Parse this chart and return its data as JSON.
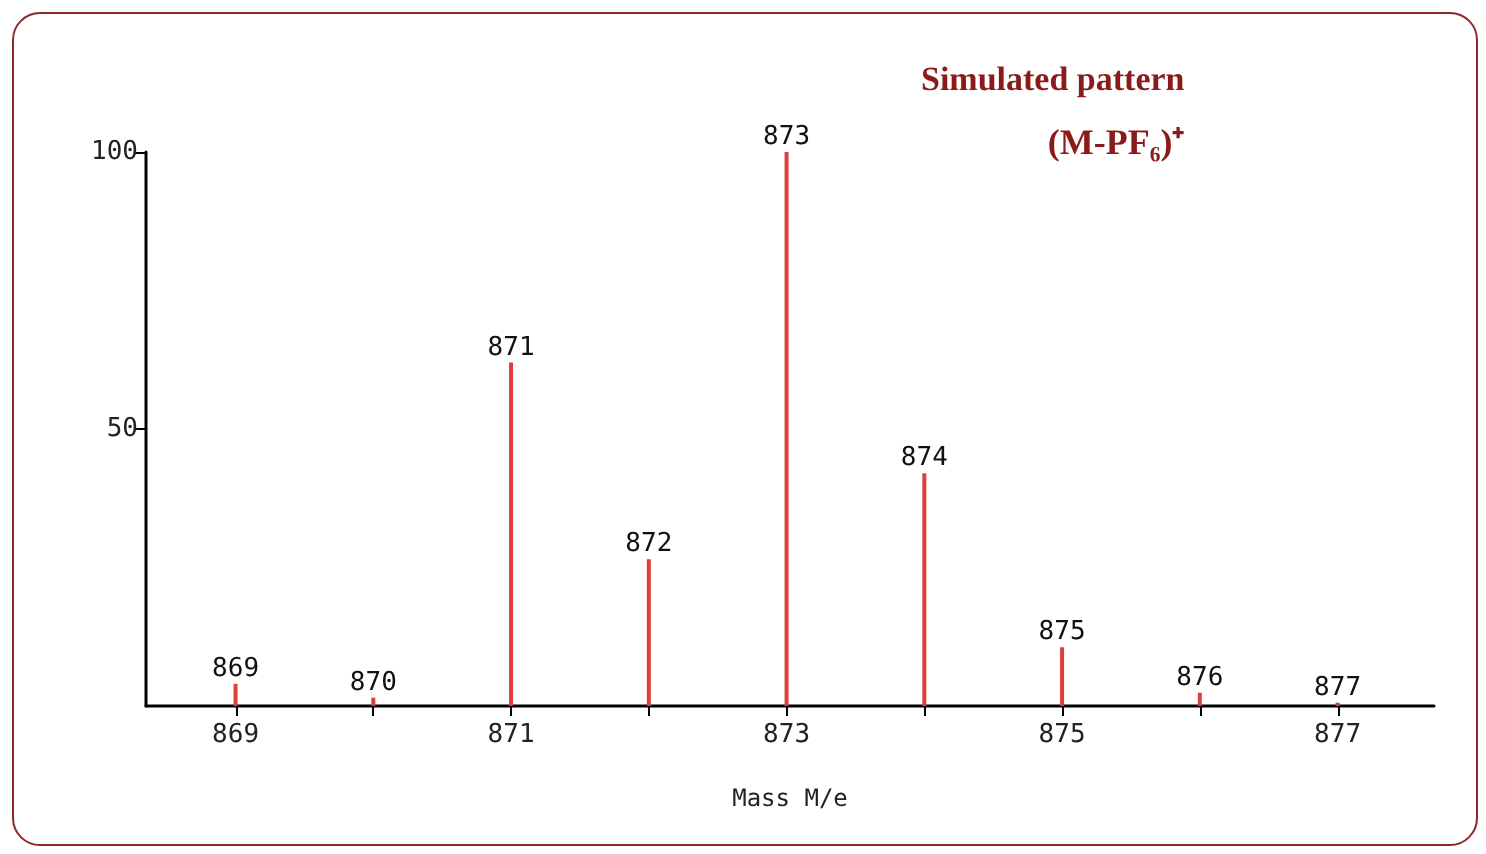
{
  "chart_data": {
    "type": "bar",
    "title": "Simulated pattern",
    "subtitle": "(M-PF₆)⁺",
    "xlabel": "Mass M/e",
    "x": [
      869,
      870,
      871,
      872,
      873,
      874,
      875,
      876,
      877
    ],
    "values": [
      4,
      1.5,
      62,
      26.5,
      100,
      42,
      10.6,
      2.4,
      0.6
    ],
    "annotations": [
      {
        "text": "869",
        "x": 869,
        "y": 4
      },
      {
        "text": "870",
        "x": 870,
        "y": 1.5
      },
      {
        "text": "871",
        "x": 871,
        "y": 62
      },
      {
        "text": "872",
        "x": 872,
        "y": 26.5
      },
      {
        "text": "873",
        "x": 873,
        "y": 100
      },
      {
        "text": "874",
        "x": 874,
        "y": 42
      },
      {
        "text": "875",
        "x": 875,
        "y": 10.6
      },
      {
        "text": "876",
        "x": 876,
        "y": 2.4
      },
      {
        "text": "877",
        "x": 877,
        "y": 0.6
      }
    ],
    "color": "#e03c3c",
    "xlim": [
      868.35,
      877.7
    ],
    "xticks": [
      869,
      {
        "value": 870,
        "label": null
      },
      871,
      {
        "value": 872,
        "label": null
      },
      873,
      {
        "value": 874,
        "label": null
      },
      875,
      {
        "value": 876,
        "label": null
      },
      877
    ],
    "ylim": [
      0,
      100
    ],
    "yticks": [
      50,
      100
    ],
    "grid": false
  }
}
